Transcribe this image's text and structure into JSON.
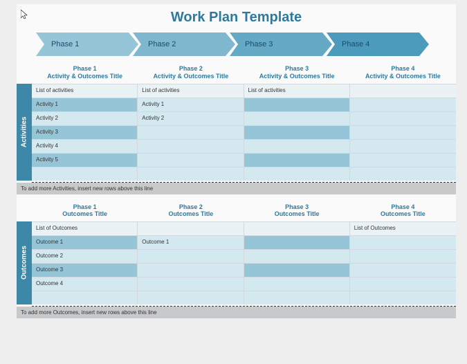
{
  "title": "Work Plan Template",
  "chevron_colors": [
    "#97c5d8",
    "#7fb7cf",
    "#66a9c5",
    "#4d9bbc"
  ],
  "chevron_text_color": "#184d68",
  "phases": [
    "Phase 1",
    "Phase 2",
    "Phase 3",
    "Phase 4"
  ],
  "activities": {
    "vtab": "Activities",
    "headers": [
      {
        "phase": "Phase 1",
        "sub": "Activity & Outcomes Title"
      },
      {
        "phase": "Phase 2",
        "sub": "Activity & Outcomes Title"
      },
      {
        "phase": "Phase 3",
        "sub": "Activity & Outcomes Title"
      },
      {
        "phase": "Phase 4",
        "sub": "Activity & Outcomes Title"
      }
    ],
    "row_label": "List of activities",
    "rows": [
      [
        "List of activities",
        "List of activities",
        "List of activities",
        ""
      ],
      [
        "Activity 1",
        "Activity 1",
        "",
        ""
      ],
      [
        "Activity 2",
        "Activity 2",
        "",
        ""
      ],
      [
        "Activity 3",
        "",
        "",
        ""
      ],
      [
        "Activity 4",
        "",
        "",
        ""
      ],
      [
        "Activity 5",
        "",
        "",
        ""
      ],
      [
        "",
        "",
        "",
        ""
      ]
    ],
    "row_styles": [
      [
        "hdr",
        "hdr",
        "hdr",
        "hdr"
      ],
      [
        "med",
        "light",
        "med",
        "light"
      ],
      [
        "light",
        "light",
        "light",
        "light"
      ],
      [
        "med",
        "light",
        "med",
        "light"
      ],
      [
        "light",
        "light",
        "light",
        "light"
      ],
      [
        "med",
        "light",
        "med",
        "light"
      ],
      [
        "light",
        "light",
        "light",
        "light"
      ]
    ],
    "footer": "To add more Activities, insert new rows above this line"
  },
  "outcomes": {
    "vtab": "Outcomes",
    "headers": [
      {
        "phase": "Phase 1",
        "sub": "Outcomes Title"
      },
      {
        "phase": "Phase 2",
        "sub": "Outcomes Title"
      },
      {
        "phase": "Phase 3",
        "sub": "Outcomes Title"
      },
      {
        "phase": "Phase 4",
        "sub": "Outcomes Title"
      }
    ],
    "rows": [
      [
        "List of Outcomes",
        "",
        "",
        "List of Outcomes"
      ],
      [
        "Outcome 1",
        "Outcome 1",
        "",
        ""
      ],
      [
        "Outcome 2",
        "",
        "",
        ""
      ],
      [
        "Outcome 3",
        "",
        "",
        ""
      ],
      [
        "Outcome 4",
        "",
        "",
        ""
      ],
      [
        "",
        "",
        "",
        ""
      ]
    ],
    "row_styles": [
      [
        "hdr",
        "hdr",
        "hdr",
        "hdr"
      ],
      [
        "med",
        "light",
        "med",
        "light"
      ],
      [
        "light",
        "light",
        "light",
        "light"
      ],
      [
        "med",
        "light",
        "med",
        "light"
      ],
      [
        "light",
        "light",
        "light",
        "light"
      ],
      [
        "light",
        "light",
        "light",
        "light"
      ]
    ],
    "footer": "To add more Outcomes, insert new rows above this line"
  },
  "colors": {
    "title": "#2d7a9e",
    "vtab_bg": "#3d88a8",
    "header_bg": "#eaf2f6",
    "light_bg": "#d4e8f0",
    "med_bg": "#97c5d8",
    "footer_bg": "#c7c9cb",
    "border": "#cfd9de",
    "page_bg": "#eeeeee"
  }
}
